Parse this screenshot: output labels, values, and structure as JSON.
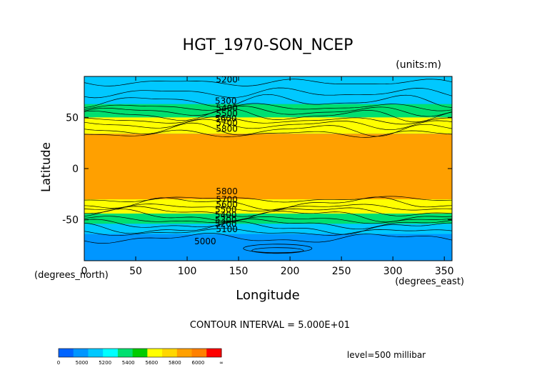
{
  "chart_data": {
    "type": "contour_map",
    "title": "HGT_1970-SON_NCEP",
    "units": "(units:m)",
    "xlabel": "Longitude",
    "ylabel": "Latitude",
    "x_unit_label": "(degrees_east)",
    "y_unit_label": "(degrees_north)",
    "xlim": [
      0,
      357.5
    ],
    "ylim": [
      -90,
      90
    ],
    "x_ticks": [
      0,
      50,
      100,
      150,
      200,
      250,
      300,
      350
    ],
    "y_ticks": [
      50,
      0,
      -50
    ],
    "contour_interval_text": "CONTOUR INTERVAL = 5.000E+01",
    "level_text": "level=500 millibar",
    "contour_labels": [
      {
        "text": "5200",
        "lon": 128,
        "lat": 84
      },
      {
        "text": "5300",
        "lon": 127,
        "lat": 63
      },
      {
        "text": "5400",
        "lon": 128,
        "lat": 56
      },
      {
        "text": "5500",
        "lon": 128,
        "lat": 51
      },
      {
        "text": "5600",
        "lon": 127,
        "lat": 46
      },
      {
        "text": "5700",
        "lon": 128,
        "lat": 42
      },
      {
        "text": "5800",
        "lon": 128,
        "lat": 36
      },
      {
        "text": "5800",
        "lon": 128,
        "lat": -25
      },
      {
        "text": "5700",
        "lon": 128,
        "lat": -33
      },
      {
        "text": "5600",
        "lon": 128,
        "lat": -38
      },
      {
        "text": "5500",
        "lon": 127,
        "lat": -43
      },
      {
        "text": "5400",
        "lon": 127,
        "lat": -48
      },
      {
        "text": "5300",
        "lon": 127,
        "lat": -53
      },
      {
        "text": "5200",
        "lon": 127,
        "lat": -57
      },
      {
        "text": "5100",
        "lon": 128,
        "lat": -62
      },
      {
        "text": "5000",
        "lon": 107,
        "lat": -74
      }
    ],
    "bands_north": [
      {
        "lat_edge": 90,
        "color": "#00c8ff"
      },
      {
        "lat_edge": 63,
        "color": "#00e070"
      },
      {
        "lat_edge": 50,
        "color": "#ffff00"
      },
      {
        "lat_edge": 34,
        "color": "#ffa000"
      }
    ],
    "bands_south": [
      {
        "lat_edge": -30,
        "color": "#ffff00"
      },
      {
        "lat_edge": -44,
        "color": "#00e070"
      },
      {
        "lat_edge": -54,
        "color": "#00c8ff"
      },
      {
        "lat_edge": -64,
        "color": "#0096ff"
      }
    ],
    "colorbar": {
      "labels": [
        "0",
        "5000",
        "5200",
        "5400",
        "5600",
        "5800",
        "6000",
        "∞"
      ],
      "colors": [
        "#0064ff",
        "#0096ff",
        "#00c8ff",
        "#00ffff",
        "#00e070",
        "#00cc00",
        "#ffff00",
        "#ffd700",
        "#ffa000",
        "#ff8000",
        "#ff0000"
      ]
    }
  }
}
